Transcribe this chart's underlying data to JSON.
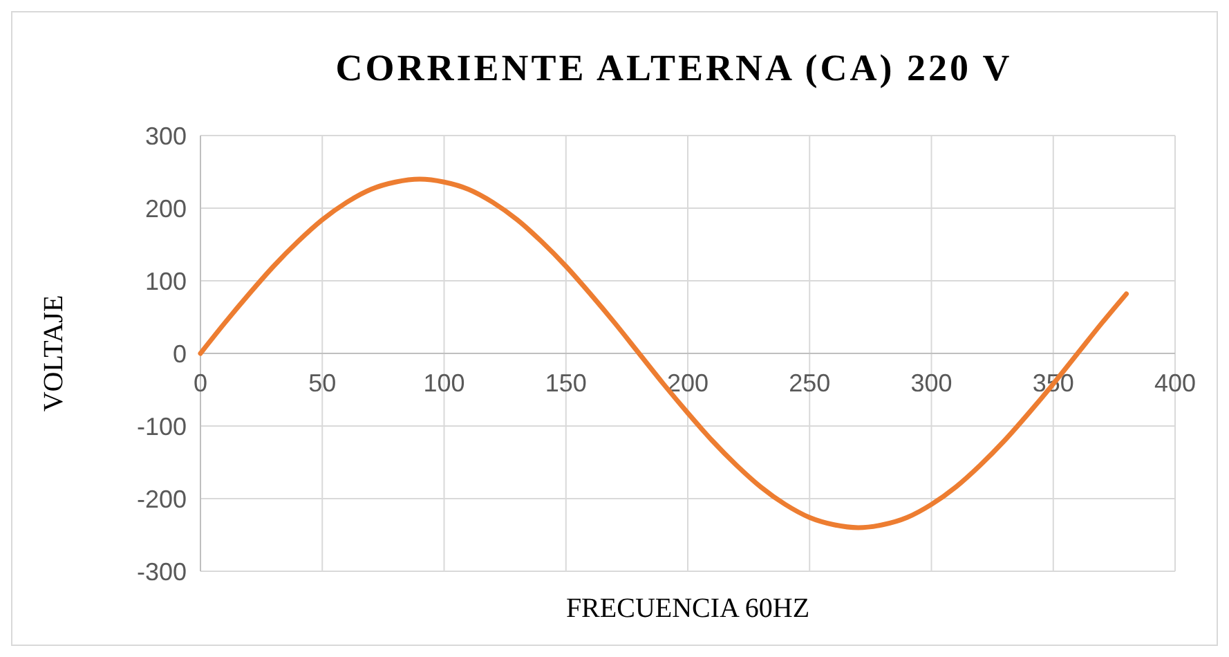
{
  "chart_data": {
    "type": "line",
    "title": "CORRIENTE ALTERNA (CA) 220 V",
    "xlabel": "FRECUENCIA 60HZ",
    "ylabel": "VOLTAJE",
    "x": [
      0,
      10,
      20,
      30,
      40,
      50,
      60,
      70,
      80,
      90,
      100,
      110,
      120,
      130,
      140,
      150,
      160,
      170,
      180,
      190,
      200,
      210,
      220,
      230,
      240,
      250,
      260,
      270,
      280,
      290,
      300,
      310,
      320,
      330,
      340,
      350,
      360,
      370,
      380
    ],
    "series": [
      {
        "color": "#ed7d31",
        "values": [
          0,
          42,
          82,
          120,
          154,
          184,
          208,
          226,
          236,
          240,
          236,
          226,
          208,
          184,
          154,
          120,
          82,
          42,
          0,
          -42,
          -82,
          -120,
          -154,
          -184,
          -208,
          -226,
          -236,
          -240,
          -236,
          -226,
          -208,
          -184,
          -154,
          -120,
          -82,
          -42,
          0,
          42,
          82
        ]
      }
    ],
    "xlim": [
      0,
      400
    ],
    "xticks": [
      0,
      50,
      100,
      150,
      200,
      250,
      300,
      350,
      400
    ],
    "ylim": [
      -300,
      300
    ],
    "yticks": [
      -300,
      -200,
      -100,
      0,
      100,
      200,
      300
    ],
    "grid": true,
    "marker": "none",
    "line_style": "solid"
  }
}
